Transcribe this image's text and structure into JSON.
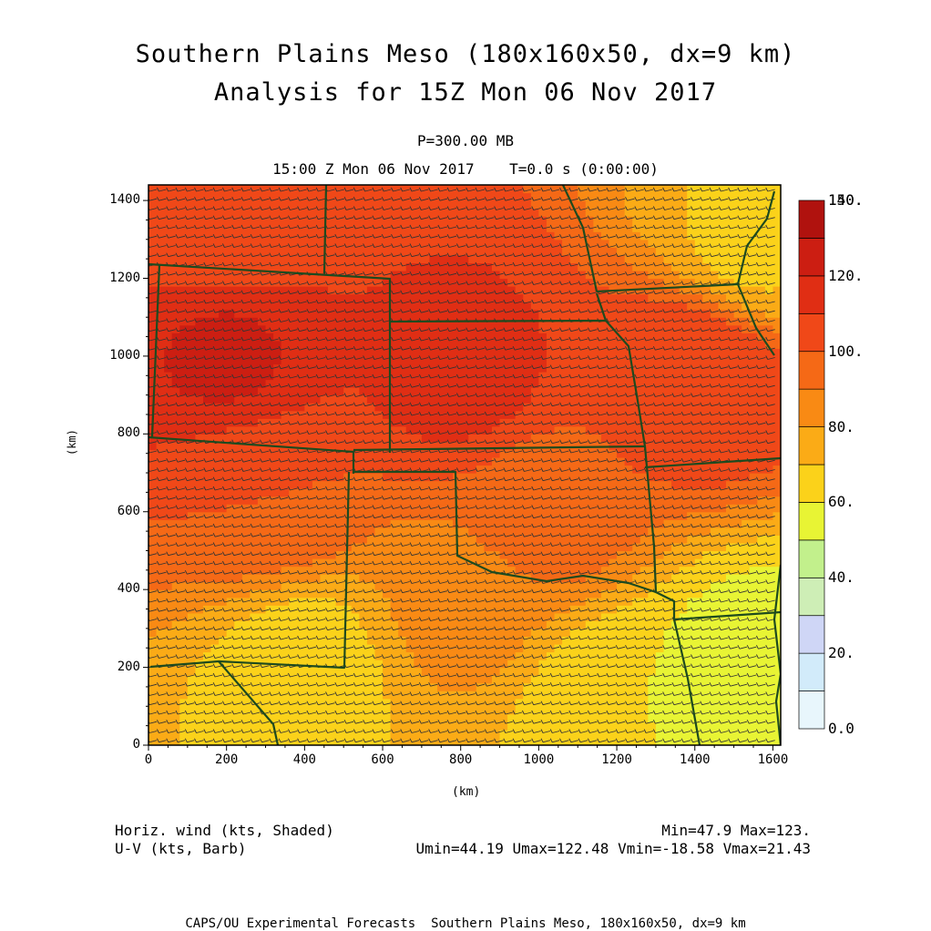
{
  "title_line1": "Southern Plains Meso (180x160x50, dx=9 km)",
  "title_line2": "Analysis for 15Z Mon 06 Nov 2017",
  "level": "P=300.00 MB",
  "time_line": "15:00 Z Mon 06 Nov 2017    T=0.0 s (0:00:00)",
  "footer": "CAPS/OU Experimental Forecasts  Southern Plains Meso, 180x160x50, dx=9 km",
  "info": {
    "field1": "Horiz. wind (kts, Shaded)",
    "field2": "U-V (kts, Barb)",
    "minmax": "Min=47.9 Max=123.",
    "uvstats": "Umin=44.19 Umax=122.48 Vmin=-18.58 Vmax=21.43"
  },
  "colors": {
    "bands": [
      "#e8f6fc",
      "#d2ebfa",
      "#cfd6f6",
      "#ceeeb6",
      "#c2f08c",
      "#e8f434",
      "#fbd21a",
      "#fbab16",
      "#f98a14",
      "#f56916",
      "#f04818",
      "#e02e14",
      "#cc1e12",
      "#b0120e"
    ],
    "border": "#1e4a1e",
    "barb": "#333333"
  },
  "chart_data": {
    "type": "heatmap",
    "title": "Southern Plains Meso (180x160x50, dx=9 km)",
    "xlabel": "(km)",
    "ylabel": "(km)",
    "xlim": [
      0,
      1620
    ],
    "ylim": [
      0,
      1440
    ],
    "xticks": [
      0,
      200,
      400,
      600,
      800,
      1000,
      1200,
      1400,
      1600
    ],
    "yticks": [
      0,
      200,
      400,
      600,
      800,
      1000,
      1200,
      1400
    ],
    "colorbar": {
      "levels": [
        0,
        10,
        20,
        30,
        40,
        50,
        60,
        70,
        80,
        90,
        100,
        110,
        120,
        130,
        140,
        150
      ],
      "labels": [
        "0.0",
        "20.",
        "40.",
        "60.",
        "80.",
        "100.",
        "120.",
        "140.",
        "150."
      ]
    },
    "field": {
      "min": 47.9,
      "max": 123,
      "description_points": [
        {
          "x": 200,
          "y": 1000,
          "value": 121
        },
        {
          "x": 800,
          "y": 950,
          "value": 113
        },
        {
          "x": 1400,
          "y": 950,
          "value": 110
        },
        {
          "x": 200,
          "y": 1350,
          "value": 100
        },
        {
          "x": 1550,
          "y": 1300,
          "value": 68
        },
        {
          "x": 300,
          "y": 650,
          "value": 100
        },
        {
          "x": 1000,
          "y": 600,
          "value": 96
        },
        {
          "x": 800,
          "y": 350,
          "value": 82
        },
        {
          "x": 400,
          "y": 200,
          "value": 65
        },
        {
          "x": 1200,
          "y": 100,
          "value": 60
        },
        {
          "x": 1550,
          "y": 200,
          "value": 55
        }
      ]
    }
  }
}
